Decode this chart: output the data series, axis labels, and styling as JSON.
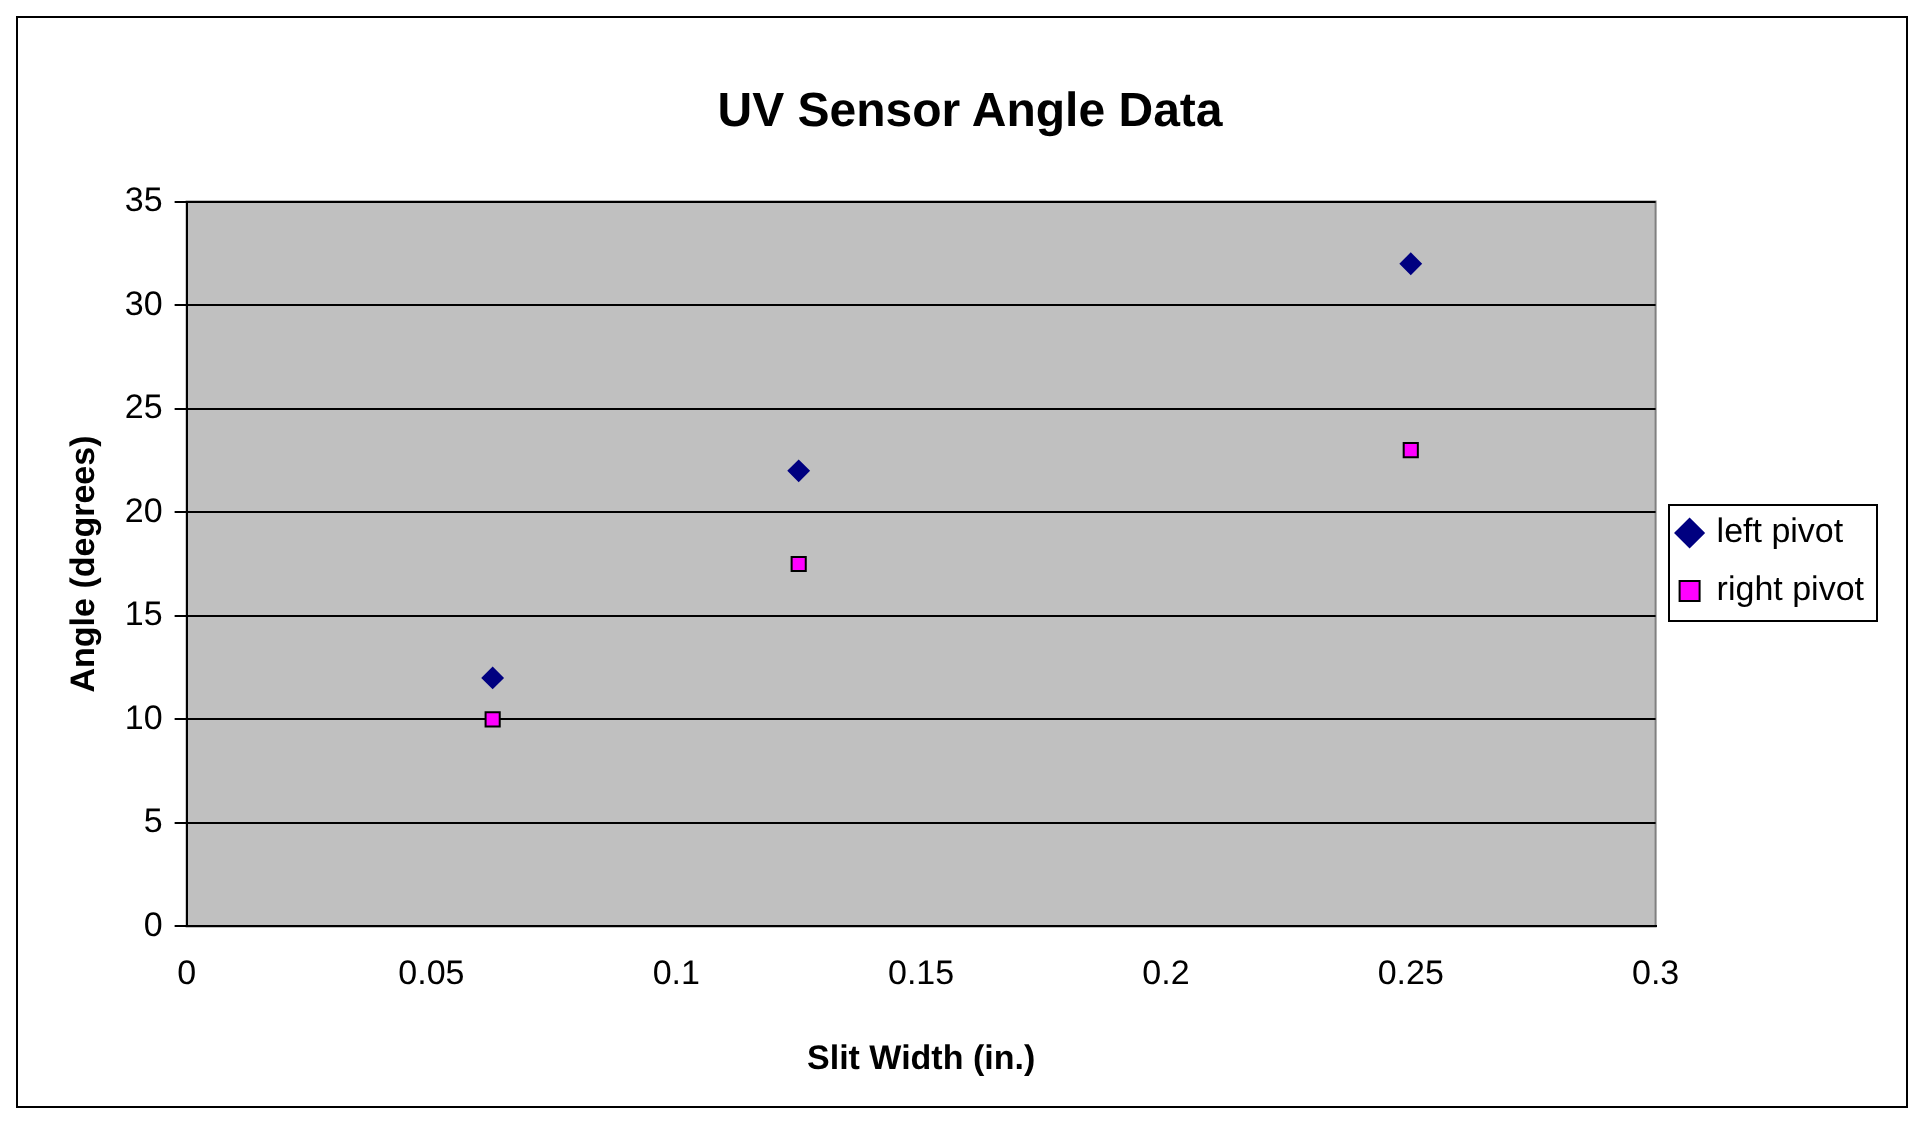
{
  "chart_data": {
    "type": "scatter",
    "title": "UV Sensor Angle Data",
    "xlabel": "Slit Width (in.)",
    "ylabel": "Angle (degrees)",
    "series": [
      {
        "name": "left pivot",
        "color": "#000080",
        "marker": "diamond",
        "x": [
          0.0625,
          0.125,
          0.25
        ],
        "values": [
          12,
          22,
          32
        ]
      },
      {
        "name": "right pivot",
        "color": "#ff00ff",
        "marker": "square",
        "x": [
          0.0625,
          0.125,
          0.25
        ],
        "values": [
          10,
          17.5,
          23
        ]
      }
    ],
    "xlim": [
      0,
      0.3
    ],
    "xticks": [
      0,
      0.05,
      0.1,
      0.15,
      0.2,
      0.25,
      0.3
    ],
    "ylim": [
      0,
      35
    ],
    "yticks": [
      0,
      5,
      10,
      15,
      20,
      25,
      30,
      35
    ],
    "grid": "y",
    "legend": "right"
  }
}
